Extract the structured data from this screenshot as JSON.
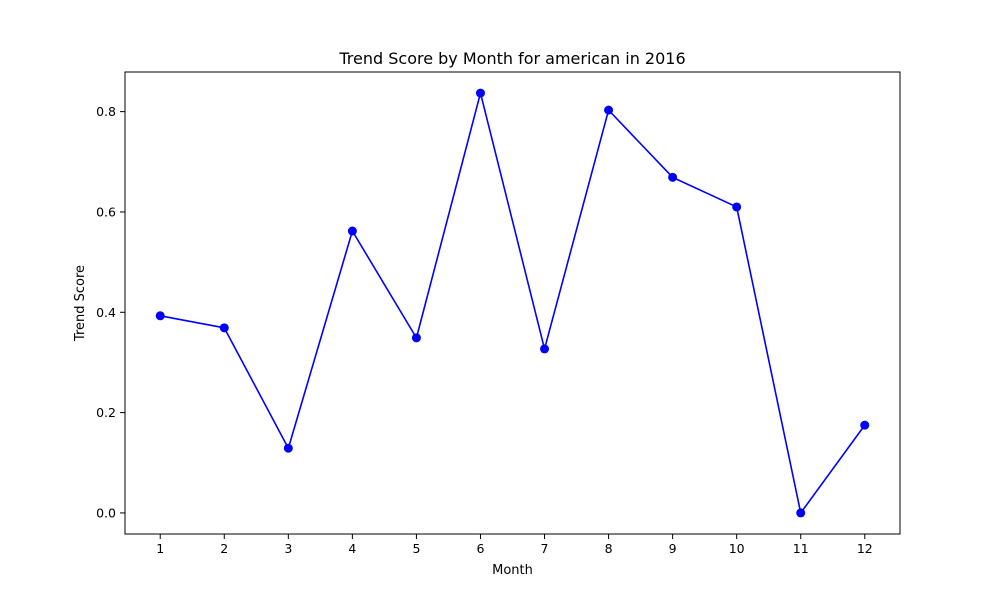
{
  "chart_data": {
    "type": "line",
    "title": "Trend Score by Month for american in 2016",
    "xlabel": "Month",
    "ylabel": "Trend Score",
    "x": [
      1,
      2,
      3,
      4,
      5,
      6,
      7,
      8,
      9,
      10,
      11,
      12
    ],
    "series": [
      {
        "values": [
          0.393,
          0.369,
          0.129,
          0.562,
          0.349,
          0.837,
          0.327,
          0.803,
          0.669,
          0.61,
          0.0,
          0.175
        ],
        "color": "#0000ff",
        "marker": "circle"
      }
    ],
    "xlim": [
      0.45,
      12.55
    ],
    "ylim": [
      -0.042,
      0.879
    ],
    "xticks": [
      "1",
      "2",
      "3",
      "4",
      "5",
      "6",
      "7",
      "8",
      "9",
      "10",
      "11",
      "12"
    ],
    "yticks": [
      "0.0",
      "0.2",
      "0.4",
      "0.6",
      "0.8"
    ],
    "grid": false,
    "legend": "none"
  }
}
